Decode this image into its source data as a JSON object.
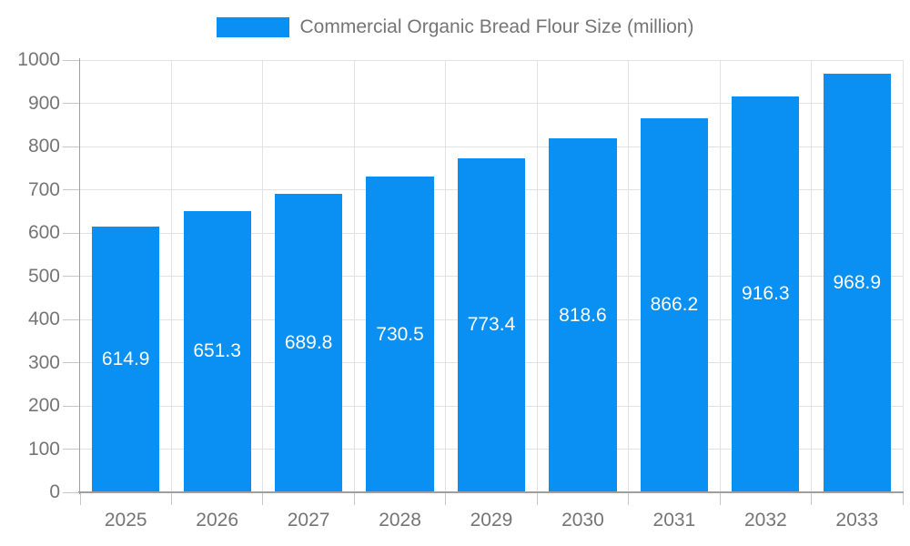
{
  "chart_data": {
    "type": "bar",
    "title": "Commercial Organic Bread Flour Size (million)",
    "legend": {
      "position": "top",
      "entries": [
        "Commercial Organic Bread Flour Size (million)"
      ]
    },
    "categories": [
      "2025",
      "2026",
      "2027",
      "2028",
      "2029",
      "2030",
      "2031",
      "2032",
      "2033"
    ],
    "series": [
      {
        "name": "Commercial Organic Bread Flour Size (million)",
        "values": [
          614.9,
          651.3,
          689.8,
          730.5,
          773.4,
          818.6,
          866.2,
          916.3,
          968.9
        ]
      }
    ],
    "value_labels": [
      "614.9",
      "651.3",
      "689.8",
      "730.5",
      "773.4",
      "818.6",
      "866.2",
      "916.3",
      "968.9"
    ],
    "xlabel": "",
    "ylabel": "",
    "ylim": [
      0,
      1000
    ],
    "yticks": [
      0,
      100,
      200,
      300,
      400,
      500,
      600,
      700,
      800,
      900,
      1000
    ],
    "grid": true,
    "colors": {
      "bar": "#0a8ff2",
      "axis": "#9e9e9e",
      "grid": "#e2e2e2",
      "tick": "#c7c7c7",
      "label": "#757575",
      "value_label": "#ffffff",
      "background": "#ffffff"
    }
  }
}
